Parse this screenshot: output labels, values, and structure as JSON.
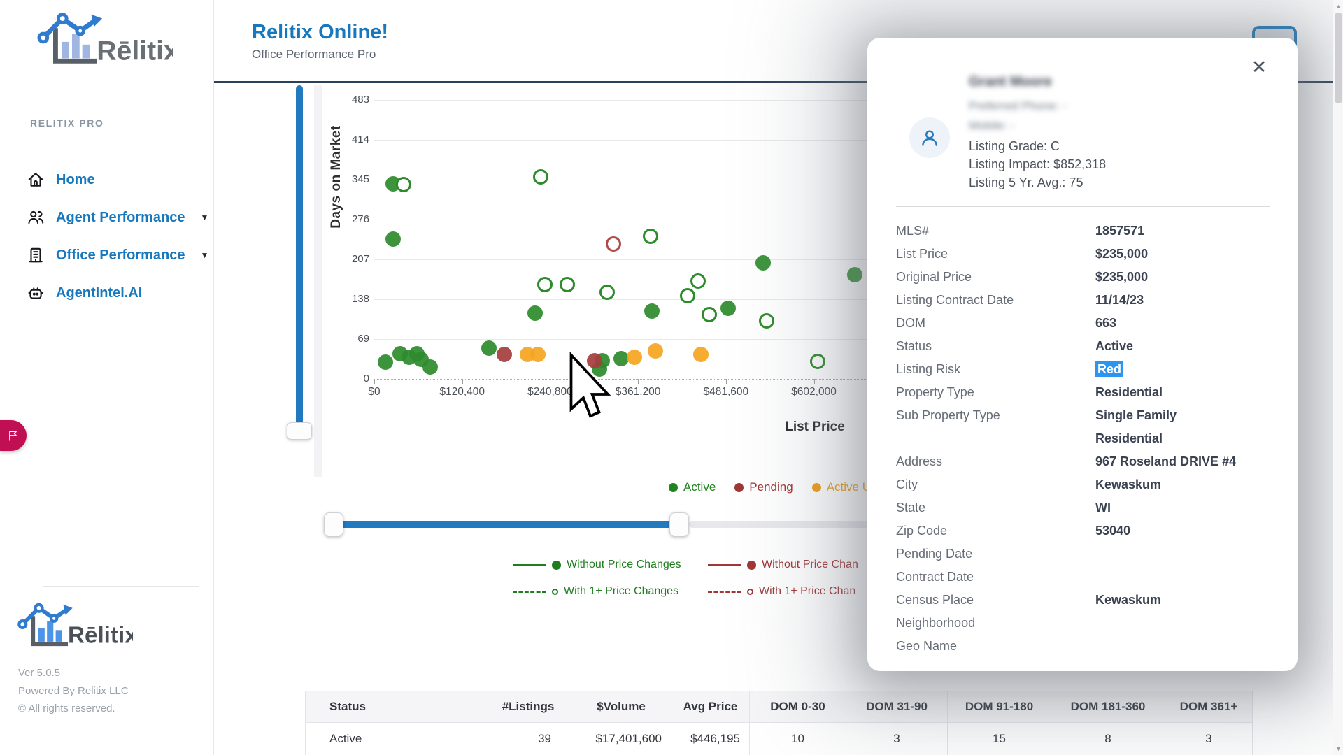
{
  "app": {
    "brand": "Rēlitix",
    "version": "Ver 5.0.5",
    "powered_by": "Powered By Relitix LLC",
    "copyright": "© All rights reserved."
  },
  "header": {
    "title": "Relitix Online!",
    "subtitle": "Office Performance Pro"
  },
  "sidebar": {
    "section_label": "RELITIX PRO",
    "items": [
      {
        "label": "Home",
        "icon": "home-icon",
        "expandable": false
      },
      {
        "label": "Agent Performance",
        "icon": "agents-icon",
        "expandable": true
      },
      {
        "label": "Office Performance",
        "icon": "office-icon",
        "expandable": true
      },
      {
        "label": "AgentIntel.AI",
        "icon": "robot-icon",
        "expandable": false
      }
    ],
    "caret": "▼"
  },
  "chart_data": {
    "type": "scatter",
    "xlabel": "List Price",
    "ylabel": "Days on Market",
    "x_axis": {
      "ticks": [
        0,
        120400,
        240800,
        361200,
        481600,
        602000
      ],
      "tick_labels": [
        "$0",
        "$120,400",
        "$240,800",
        "$361,200",
        "$481,600",
        "$602,000"
      ]
    },
    "y_axis": {
      "ticks": [
        0,
        69,
        138,
        207,
        276,
        345,
        414,
        483
      ]
    },
    "series": [
      {
        "name": "Active Without Price Changes",
        "style": "solid",
        "color": "#2e8b2c",
        "points": [
          [
            26000,
            338
          ],
          [
            26000,
            242
          ],
          [
            15000,
            29
          ],
          [
            35000,
            44
          ],
          [
            48000,
            38
          ],
          [
            58000,
            44
          ],
          [
            64000,
            34
          ],
          [
            77000,
            21
          ],
          [
            157000,
            53
          ],
          [
            220000,
            114
          ],
          [
            312000,
            31
          ],
          [
            308000,
            17
          ],
          [
            338000,
            35
          ],
          [
            380000,
            117
          ],
          [
            485000,
            122
          ],
          [
            533000,
            201
          ],
          [
            658000,
            180
          ]
        ]
      },
      {
        "name": "Active With 1+ Price Changes",
        "style": "hollow",
        "color": "#2e8b2c",
        "points": [
          [
            40000,
            337
          ],
          [
            228000,
            350
          ],
          [
            378000,
            247
          ],
          [
            234000,
            163
          ],
          [
            264000,
            163
          ],
          [
            319000,
            150
          ],
          [
            443000,
            169
          ],
          [
            429000,
            144
          ],
          [
            459000,
            111
          ],
          [
            537000,
            100
          ],
          [
            607000,
            30
          ]
        ]
      },
      {
        "name": "Pending Without Price Changes",
        "style": "solid",
        "color": "#a53e3e",
        "points": [
          [
            178000,
            42
          ],
          [
            302000,
            31
          ]
        ]
      },
      {
        "name": "Pending With 1+ Price Changes",
        "style": "hollow",
        "color": "#b04a4a",
        "points": [
          [
            328000,
            234
          ]
        ]
      },
      {
        "name": "Active Under Contract",
        "style": "solid",
        "color": "#f5a41f",
        "points": [
          [
            210000,
            42
          ],
          [
            224000,
            42
          ],
          [
            356000,
            38
          ],
          [
            385000,
            48
          ],
          [
            447000,
            42
          ]
        ]
      }
    ],
    "status_legend": [
      {
        "label": "Active",
        "color": "#228321"
      },
      {
        "label": "Pending",
        "color": "#a03636"
      },
      {
        "label": "Active U",
        "color": "#ef9d18"
      }
    ],
    "change_legend": [
      {
        "label": "Without Price Changes",
        "color": "#1e7e1e",
        "line": "solid",
        "marker": "dot"
      },
      {
        "label": "Without Price Chan",
        "color": "#a03636",
        "line": "solid",
        "marker": "dot"
      },
      {
        "label": "With 1+ Price Changes",
        "color": "#1e7e1e",
        "line": "dashed",
        "marker": "ring"
      },
      {
        "label": "With 1+ Price Chan",
        "color": "#a03636",
        "line": "dashed",
        "marker": "ring"
      }
    ]
  },
  "modal": {
    "close_icon": "✕",
    "agent_name": "Grant Moore",
    "contact_lines": "Preferred Phone:  -\nMobile:  -",
    "stats_lines": "Listing Grade: C\nListing Impact:   $852,318\nListing 5 Yr. Avg.: 75",
    "risk_highlight_bg": "#2b95f0",
    "details": [
      {
        "label": "MLS#",
        "value": "1857571"
      },
      {
        "label": "List Price",
        "value": "$235,000"
      },
      {
        "label": "Original Price",
        "value": "$235,000"
      },
      {
        "label": "Listing Contract Date",
        "value": "11/14/23"
      },
      {
        "label": "DOM",
        "value": "663"
      },
      {
        "label": "Status",
        "value": "Active"
      },
      {
        "label": "Listing Risk",
        "value": "Red",
        "highlight": true
      },
      {
        "label": "Property Type",
        "value": "Residential"
      },
      {
        "label": "Sub Property Type",
        "value": "Single Family\nResidential"
      },
      {
        "label": "Address",
        "value": "967 Roseland DRIVE #4"
      },
      {
        "label": "City",
        "value": "Kewaskum"
      },
      {
        "label": "State",
        "value": "WI"
      },
      {
        "label": "Zip Code",
        "value": "53040"
      },
      {
        "label": "Pending Date",
        "value": ""
      },
      {
        "label": "Contract Date",
        "value": ""
      },
      {
        "label": "Census Place",
        "value": "Kewaskum"
      },
      {
        "label": "Neighborhood",
        "value": ""
      },
      {
        "label": "Geo Name",
        "value": ""
      }
    ]
  },
  "table": {
    "headers": [
      "Status",
      "#Listings",
      "$Volume",
      "Avg Price",
      "DOM 0-30",
      "DOM 31-90",
      "DOM 91-180",
      "DOM 181-360",
      "DOM 361+"
    ],
    "rows": [
      [
        "Active",
        "39",
        "$17,401,600",
        "$446,195",
        "10",
        "3",
        "15",
        "8",
        "3"
      ]
    ]
  }
}
